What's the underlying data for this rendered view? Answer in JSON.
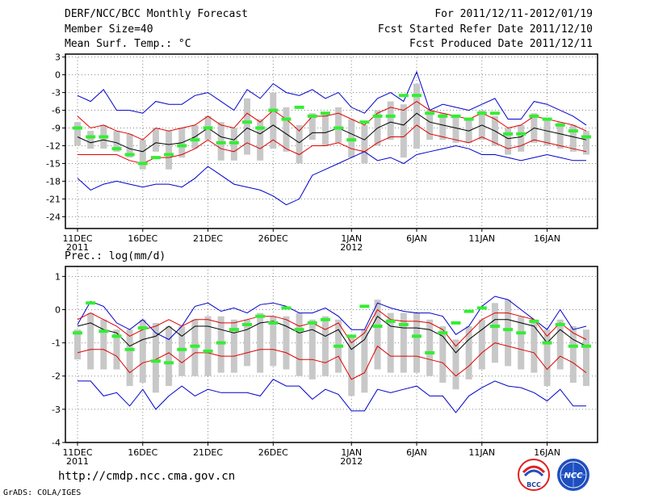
{
  "header": {
    "title": "DERF/NCC/BCC Monthly Forecast",
    "member_size": "Member Size=40",
    "variable_1": "Mean Surf. Temp.: °C",
    "period": "For 2011/12/11-2012/01/19",
    "fcst_started": "Fcst Started Refer Date 2011/12/10",
    "fcst_produced": "Fcst Produced Date 2011/12/11"
  },
  "variable_2": "Prec.: log(mm/d)",
  "footer": {
    "url": "http://cmdp.ncc.cma.gov.cn",
    "credit": "GrADS: COLA/IGES",
    "logo_bcc": "BCC",
    "logo_ncc": "NCC"
  },
  "colors": {
    "ensemble_mean": "#000000",
    "std_band": "#e00000",
    "min_max": "#0000cc",
    "spread_box": "#c8c8c8",
    "observed": "#33ee33"
  },
  "chart_data": [
    {
      "type": "line",
      "title": "Mean Surf. Temp.: °C",
      "xlabel": "",
      "ylabel": "",
      "x": [
        "2011-12-11",
        "2011-12-12",
        "2011-12-13",
        "2011-12-14",
        "2011-12-15",
        "2011-12-16",
        "2011-12-17",
        "2011-12-18",
        "2011-12-19",
        "2011-12-20",
        "2011-12-21",
        "2011-12-22",
        "2011-12-23",
        "2011-12-24",
        "2011-12-25",
        "2011-12-26",
        "2011-12-27",
        "2011-12-28",
        "2011-12-29",
        "2011-12-30",
        "2011-12-31",
        "2012-01-01",
        "2012-01-02",
        "2012-01-03",
        "2012-01-04",
        "2012-01-05",
        "2012-01-06",
        "2012-01-07",
        "2012-01-08",
        "2012-01-09",
        "2012-01-10",
        "2012-01-11",
        "2012-01-12",
        "2012-01-13",
        "2012-01-14",
        "2012-01-15",
        "2012-01-16",
        "2012-01-17",
        "2012-01-18",
        "2012-01-19"
      ],
      "ylim": [
        -26,
        3.5
      ],
      "yticks": [
        3,
        0,
        -3,
        -6,
        -9,
        -12,
        -15,
        -18,
        -21,
        -24
      ],
      "xticks": [
        {
          "label": "11DEC",
          "sub": "2011",
          "index": 0
        },
        {
          "label": "16DEC",
          "sub": "",
          "index": 5
        },
        {
          "label": "21DEC",
          "sub": "",
          "index": 10
        },
        {
          "label": "26DEC",
          "sub": "",
          "index": 15
        },
        {
          "label": "1JAN",
          "sub": "2012",
          "index": 21
        },
        {
          "label": "6JAN",
          "sub": "",
          "index": 26
        },
        {
          "label": "11JAN",
          "sub": "",
          "index": 31
        },
        {
          "label": "16JAN",
          "sub": "",
          "index": 36
        }
      ],
      "grid": true,
      "series": [
        {
          "name": "ensemble_mean",
          "values": [
            -10.5,
            -11.5,
            -11,
            -11.5,
            -12.5,
            -13,
            -11.5,
            -11.8,
            -11.5,
            -10.5,
            -9,
            -10.5,
            -11,
            -9,
            -10,
            -8.5,
            -10,
            -11.5,
            -9.8,
            -9.8,
            -9,
            -10,
            -11,
            -9,
            -8,
            -8.5,
            -6.5,
            -8,
            -8.5,
            -9,
            -9.5,
            -8.5,
            -9.5,
            -10.8,
            -10.5,
            -9,
            -9.5,
            -10,
            -10.5,
            -11
          ]
        },
        {
          "name": "std_upper",
          "values": [
            -7,
            -9,
            -8.5,
            -9.5,
            -10,
            -11,
            -9,
            -9.5,
            -9,
            -8.5,
            -7,
            -8.5,
            -9,
            -6.5,
            -8,
            -6,
            -7.5,
            -9.5,
            -7,
            -7,
            -6.5,
            -7.5,
            -8.5,
            -6.5,
            -5.5,
            -6,
            -4.5,
            -6,
            -6.5,
            -7,
            -7.5,
            -6.5,
            -7.5,
            -9,
            -8.5,
            -7,
            -7.5,
            -8,
            -8.5,
            -9.5
          ]
        },
        {
          "name": "std_lower",
          "values": [
            -13.5,
            -13.5,
            -13.5,
            -13.5,
            -14.5,
            -15,
            -14,
            -14,
            -13.5,
            -12.5,
            -11,
            -12.5,
            -13,
            -11.5,
            -12.5,
            -11,
            -12.5,
            -13.5,
            -12,
            -12,
            -11.5,
            -12.5,
            -13,
            -11.5,
            -10.5,
            -10.5,
            -8.5,
            -10,
            -10.5,
            -11,
            -11.5,
            -10.5,
            -11.5,
            -12.5,
            -12,
            -11,
            -11.5,
            -12,
            -12.5,
            -13
          ]
        },
        {
          "name": "max",
          "values": [
            -3.5,
            -4.5,
            -2.5,
            -6,
            -6,
            -6.5,
            -4.5,
            -5,
            -5,
            -3.5,
            -3,
            -4.5,
            -6,
            -2.5,
            -4,
            -1.5,
            -3,
            -3.5,
            -2.5,
            -4,
            -3,
            -5.5,
            -6.5,
            -4,
            -3,
            -4.5,
            0.5,
            -6,
            -5,
            -5.5,
            -6,
            -5,
            -4,
            -7.5,
            -7.5,
            -4.5,
            -5,
            -6,
            -7,
            -8.5
          ]
        },
        {
          "name": "min",
          "values": [
            -17.5,
            -19.5,
            -18.5,
            -18,
            -18.5,
            -19,
            -18.5,
            -18.5,
            -19,
            -17.5,
            -15.5,
            -17,
            -18.5,
            -19,
            -19.5,
            -20.5,
            -22,
            -21,
            -17,
            -16,
            -15,
            -14,
            -13,
            -14.5,
            -14,
            -15,
            -13.5,
            -13,
            -12.5,
            -12,
            -12.5,
            -13.5,
            -13.5,
            -14,
            -14.5,
            -14,
            -13.5,
            -14,
            -14.5,
            -14.5
          ]
        },
        {
          "name": "box_top",
          "values": [
            -8,
            -9.5,
            -8.5,
            -9.5,
            -10,
            -11,
            -9,
            -9.5,
            -9,
            -8.5,
            -7,
            -8,
            -9,
            -4,
            -7.5,
            -3,
            -5.5,
            -8.5,
            -6.5,
            -6.5,
            -5.5,
            -7.5,
            -8.5,
            -6,
            -4.5,
            -5,
            -1.5,
            -6,
            -6.5,
            -7,
            -7.5,
            -6,
            -7,
            -9,
            -8.5,
            -6.5,
            -7.5,
            -8,
            -8.5,
            -9.5
          ]
        },
        {
          "name": "box_bottom",
          "values": [
            -12,
            -12.5,
            -12.5,
            -13,
            -14,
            -16,
            -13,
            -16,
            -14,
            -12.5,
            -11,
            -14.5,
            -14.5,
            -13.5,
            -14.5,
            -12.5,
            -13,
            -15,
            -11,
            -12,
            -11.5,
            -14,
            -15,
            -12,
            -11,
            -14,
            -12.5,
            -11,
            -11,
            -11.5,
            -11.5,
            -11,
            -12,
            -13.5,
            -13,
            -11.5,
            -12,
            -12.5,
            -13,
            -13.5
          ]
        },
        {
          "name": "observed",
          "values": [
            -9,
            -10.5,
            -10.5,
            -12.5,
            -13.5,
            -15,
            -14,
            -13.5,
            -12,
            -11,
            -9,
            -11.5,
            -11.5,
            -8,
            -9,
            -6,
            -7.5,
            -5.5,
            -7,
            -6.5,
            -9,
            -11,
            -8,
            -7,
            -7,
            -3.5,
            -3.5,
            -6.5,
            -7,
            -7,
            -7.5,
            -6.5,
            -6.5,
            -10,
            -10,
            -7,
            -7.5,
            -8.5,
            -9.5,
            -10.5
          ]
        }
      ]
    },
    {
      "type": "line",
      "title": "Prec.: log(mm/d)",
      "xlabel": "",
      "ylabel": "",
      "x": [
        "2011-12-11",
        "2011-12-12",
        "2011-12-13",
        "2011-12-14",
        "2011-12-15",
        "2011-12-16",
        "2011-12-17",
        "2011-12-18",
        "2011-12-19",
        "2011-12-20",
        "2011-12-21",
        "2011-12-22",
        "2011-12-23",
        "2011-12-24",
        "2011-12-25",
        "2011-12-26",
        "2011-12-27",
        "2011-12-28",
        "2011-12-29",
        "2011-12-30",
        "2011-12-31",
        "2012-01-01",
        "2012-01-02",
        "2012-01-03",
        "2012-01-04",
        "2012-01-05",
        "2012-01-06",
        "2012-01-07",
        "2012-01-08",
        "2012-01-09",
        "2012-01-10",
        "2012-01-11",
        "2012-01-12",
        "2012-01-13",
        "2012-01-14",
        "2012-01-15",
        "2012-01-16",
        "2012-01-17",
        "2012-01-18",
        "2012-01-19"
      ],
      "ylim": [
        -4,
        1.3
      ],
      "yticks": [
        1,
        0,
        -1,
        -2,
        -3,
        -4
      ],
      "xticks": [
        {
          "label": "11DEC",
          "sub": "2011",
          "index": 0
        },
        {
          "label": "16DEC",
          "sub": "",
          "index": 5
        },
        {
          "label": "21DEC",
          "sub": "",
          "index": 10
        },
        {
          "label": "26DEC",
          "sub": "",
          "index": 15
        },
        {
          "label": "1JAN",
          "sub": "2012",
          "index": 21
        },
        {
          "label": "6JAN",
          "sub": "",
          "index": 26
        },
        {
          "label": "11JAN",
          "sub": "",
          "index": 31
        },
        {
          "label": "16JAN",
          "sub": "",
          "index": 36
        }
      ],
      "grid": true,
      "series": [
        {
          "name": "ensemble_mean",
          "values": [
            -0.5,
            -0.4,
            -0.6,
            -0.7,
            -1.1,
            -0.9,
            -0.8,
            -0.5,
            -0.8,
            -0.5,
            -0.5,
            -0.6,
            -0.7,
            -0.6,
            -0.4,
            -0.35,
            -0.5,
            -0.7,
            -0.6,
            -0.8,
            -0.6,
            -1.2,
            -0.9,
            -0.2,
            -0.5,
            -0.55,
            -0.55,
            -0.6,
            -0.8,
            -1.3,
            -0.9,
            -0.6,
            -0.3,
            -0.3,
            -0.4,
            -0.5,
            -1,
            -0.6,
            -0.9,
            -1.1
          ]
        },
        {
          "name": "std_upper",
          "values": [
            -0.3,
            -0.1,
            -0.3,
            -0.5,
            -0.8,
            -0.6,
            -0.5,
            -0.3,
            -0.5,
            -0.3,
            -0.3,
            -0.4,
            -0.4,
            -0.3,
            -0.2,
            -0.2,
            -0.3,
            -0.5,
            -0.4,
            -0.6,
            -0.4,
            -1,
            -0.7,
            0,
            -0.3,
            -0.35,
            -0.35,
            -0.4,
            -0.6,
            -1.1,
            -0.7,
            -0.3,
            -0.1,
            -0.1,
            -0.2,
            -0.3,
            -0.8,
            -0.4,
            -0.7,
            -0.9
          ]
        },
        {
          "name": "std_lower",
          "values": [
            -1.3,
            -1.2,
            -1.2,
            -1.4,
            -1.9,
            -1.6,
            -1.5,
            -1.3,
            -1.6,
            -1.3,
            -1.3,
            -1.4,
            -1.4,
            -1.3,
            -1.2,
            -1.2,
            -1.3,
            -1.5,
            -1.5,
            -1.6,
            -1.4,
            -2.1,
            -1.9,
            -1.1,
            -1.4,
            -1.4,
            -1.4,
            -1.5,
            -1.6,
            -2,
            -1.7,
            -1.3,
            -1,
            -1.1,
            -1.2,
            -1.3,
            -1.8,
            -1.4,
            -1.6,
            -1.9
          ]
        },
        {
          "name": "max",
          "values": [
            -0.45,
            0.25,
            0.1,
            -0.4,
            -0.6,
            -0.3,
            -0.7,
            -0.9,
            -0.5,
            0.1,
            0.2,
            -0.05,
            0.05,
            -0.1,
            0.15,
            0.2,
            0.1,
            -0.1,
            -0.1,
            0.05,
            -0.2,
            -0.6,
            -0.6,
            0.2,
            0.05,
            -0.05,
            -0.1,
            -0.1,
            -0.2,
            -0.75,
            -0.5,
            0.1,
            0.4,
            0.3,
            0,
            -0.3,
            -0.6,
            0,
            -0.6,
            -0.5
          ]
        },
        {
          "name": "min",
          "values": [
            -2.15,
            -2.15,
            -2.6,
            -2.5,
            -2.9,
            -2.4,
            -3,
            -2.6,
            -2.3,
            -2.6,
            -2.4,
            -2.5,
            -2.5,
            -2.5,
            -2.6,
            -2.1,
            -2.3,
            -2.3,
            -2.7,
            -2.4,
            -2.55,
            -3.05,
            -3.05,
            -2.4,
            -2.5,
            -2.4,
            -2.3,
            -2.6,
            -2.6,
            -3.1,
            -2.6,
            -2.35,
            -2.15,
            -2.3,
            -2.35,
            -2.5,
            -2.75,
            -2.4,
            -2.9,
            -2.9
          ]
        },
        {
          "name": "box_top",
          "values": [
            -0.6,
            -0.1,
            -0.3,
            -0.6,
            -0.6,
            -0.3,
            -0.4,
            -0.5,
            -0.5,
            -0.3,
            -0.2,
            -0.2,
            -0.3,
            -0.3,
            -0.1,
            -0.2,
            -0.2,
            -0.1,
            -0.3,
            -0.2,
            -0.3,
            -0.8,
            -0.6,
            0.3,
            -0.1,
            -0.1,
            -0.1,
            -0.3,
            -0.5,
            -0.9,
            -0.5,
            -0.3,
            0.2,
            0.3,
            -0.2,
            -0.3,
            -0.6,
            -0.3,
            -0.5,
            -0.6
          ]
        },
        {
          "name": "box_bottom",
          "values": [
            -1.5,
            -1.8,
            -1.8,
            -1.8,
            -2.3,
            -2.2,
            -2.5,
            -2.3,
            -2,
            -2,
            -2,
            -1.9,
            -1.9,
            -1.7,
            -1.9,
            -1.7,
            -1.8,
            -2,
            -2.1,
            -2,
            -1.9,
            -2.6,
            -2.5,
            -1.8,
            -1.9,
            -1.9,
            -1.9,
            -2,
            -2.2,
            -2.4,
            -2.1,
            -1.8,
            -1.6,
            -1.7,
            -1.8,
            -1.9,
            -2.3,
            -1.8,
            -2.2,
            -2.3
          ]
        },
        {
          "name": "observed",
          "values": [
            -0.7,
            0.2,
            -0.65,
            -0.8,
            -1.2,
            -0.55,
            -1.55,
            -1.6,
            -1.2,
            -1.1,
            -1.25,
            -1,
            -0.6,
            -0.45,
            -0.2,
            -0.4,
            0.05,
            -0.6,
            -0.4,
            -0.3,
            -1.1,
            -0.8,
            0.1,
            -0.5,
            -0.35,
            -0.45,
            -0.8,
            -1.3,
            -0.7,
            -0.4,
            -0.05,
            0.05,
            -0.5,
            -0.6,
            -0.7,
            -0.35,
            -1,
            -0.45,
            -1.1,
            -1.1
          ]
        }
      ]
    }
  ]
}
